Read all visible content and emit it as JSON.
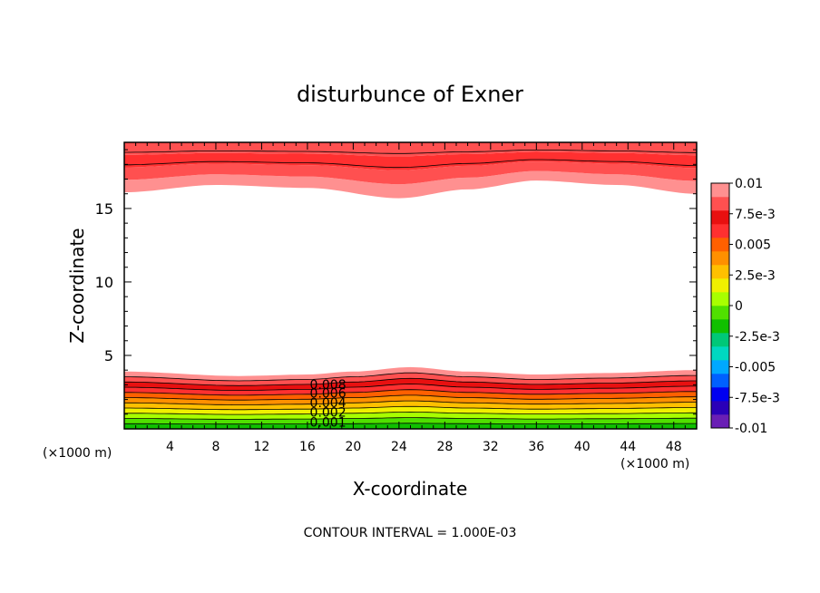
{
  "chart_data": {
    "type": "contour",
    "title": "disturbunce of Exner",
    "xlabel": "X-coordinate",
    "ylabel": "Z-coordinate",
    "x_unit": "(×1000 m)",
    "z_unit": "(×1000 m)",
    "xlim": [
      0,
      50
    ],
    "ylim": [
      0,
      19.5
    ],
    "x_ticks": [
      4,
      8,
      12,
      16,
      20,
      24,
      28,
      32,
      36,
      40,
      44,
      48
    ],
    "y_ticks": [
      5,
      10,
      15
    ],
    "contour_interval_text": "CONTOUR INTERVAL = 1.000E-03",
    "contour_labels": [
      "0.008",
      "0.006",
      "0.004",
      "0.002",
      "0.001"
    ],
    "colorbar": {
      "min": -0.01,
      "max": 0.01,
      "labels": [
        "0.01",
        "7.5e-3",
        "0.005",
        "2.5e-3",
        "0",
        "-2.5e-3",
        "-0.005",
        "-7.5e-3",
        "-0.01"
      ],
      "colors": [
        "#6a1fb5",
        "#2a00b8",
        "#0000f0",
        "#0060ff",
        "#00a8ff",
        "#00d8c0",
        "#00c878",
        "#10c000",
        "#50e000",
        "#a8ff00",
        "#f0f000",
        "#ffc000",
        "#ff9000",
        "#ff6000",
        "#ff3030",
        "#e81010",
        "#ff5050",
        "#ff9090"
      ]
    },
    "bottom_layer": {
      "top_z_by_x": [
        [
          0,
          3.9
        ],
        [
          10,
          3.6
        ],
        [
          16,
          3.7
        ],
        [
          20,
          3.9
        ],
        [
          25,
          4.2
        ],
        [
          30,
          3.9
        ],
        [
          36,
          3.7
        ],
        [
          42,
          3.8
        ],
        [
          50,
          4.0
        ]
      ]
    },
    "top_layer": {
      "base_z_by_x": [
        [
          0,
          16.1
        ],
        [
          8,
          16.6
        ],
        [
          16,
          16.4
        ],
        [
          24,
          15.7
        ],
        [
          30,
          16.3
        ],
        [
          36,
          16.9
        ],
        [
          43,
          16.6
        ],
        [
          50,
          16.0
        ]
      ]
    }
  }
}
